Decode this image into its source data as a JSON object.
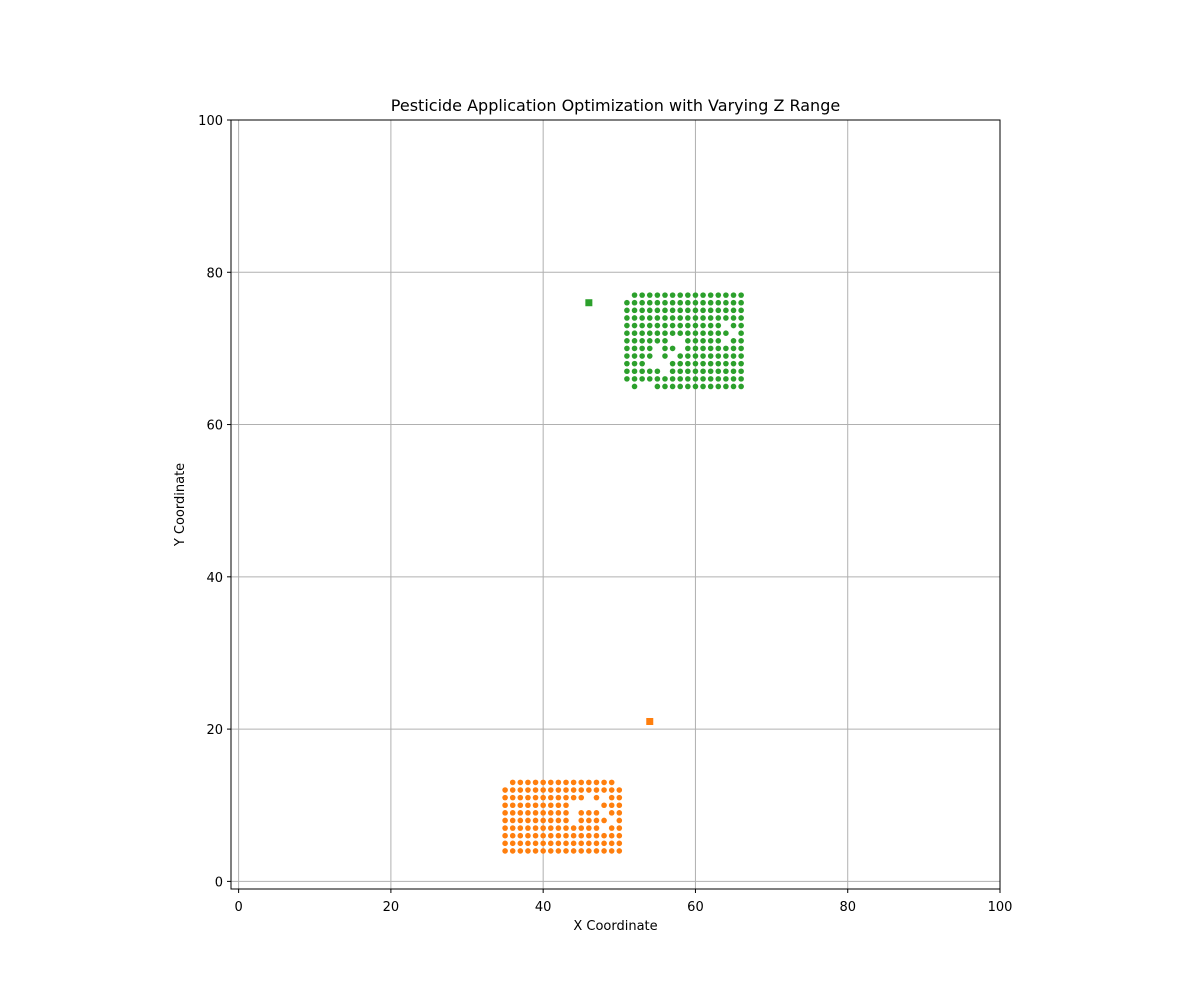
{
  "chart_data": {
    "type": "scatter",
    "title": "Pesticide Application Optimization with Varying Z Range",
    "xlabel": "X Coordinate",
    "ylabel": "Y Coordinate",
    "xlim": [
      -1,
      100
    ],
    "ylim": [
      -1,
      100
    ],
    "x_ticks": [
      0,
      20,
      40,
      60,
      80,
      100
    ],
    "y_ticks": [
      0,
      20,
      40,
      60,
      80,
      100
    ],
    "x_tick_labels": [
      "0",
      "20",
      "40",
      "60",
      "80",
      "100"
    ],
    "y_tick_labels": [
      "0",
      "20",
      "40",
      "60",
      "80",
      "100"
    ],
    "grid": true,
    "legend": "none",
    "series": [
      {
        "color": "#ff7f0e",
        "marker": "circle",
        "x_range": [
          35,
          50
        ],
        "y_range": [
          4,
          13
        ],
        "excluded_points": [
          [
            35,
            13
          ],
          [
            50,
            13
          ],
          [
            44,
            8
          ],
          [
            44,
            9
          ],
          [
            44,
            10
          ],
          [
            45,
            10
          ],
          [
            46,
            10
          ],
          [
            46,
            11
          ],
          [
            47,
            10
          ],
          [
            48,
            11
          ],
          [
            48,
            9
          ],
          [
            49,
            8
          ],
          [
            48,
            7
          ]
        ],
        "center": {
          "marker": "square",
          "x": 54,
          "y": 21
        }
      },
      {
        "color": "#2ca02c",
        "marker": "circle",
        "x_range": [
          51,
          66
        ],
        "y_range": [
          65,
          77
        ],
        "excluded_points": [
          [
            51,
            77
          ],
          [
            51,
            65
          ],
          [
            53,
            65
          ],
          [
            54,
            65
          ],
          [
            54,
            68
          ],
          [
            55,
            68
          ],
          [
            55,
            69
          ],
          [
            55,
            70
          ],
          [
            56,
            68
          ],
          [
            56,
            67
          ],
          [
            57,
            69
          ],
          [
            58,
            70
          ],
          [
            57,
            71
          ],
          [
            58,
            71
          ],
          [
            64,
            73
          ],
          [
            65,
            72
          ],
          [
            64,
            71
          ]
        ],
        "center": {
          "marker": "square",
          "x": 46,
          "y": 76
        }
      }
    ]
  }
}
